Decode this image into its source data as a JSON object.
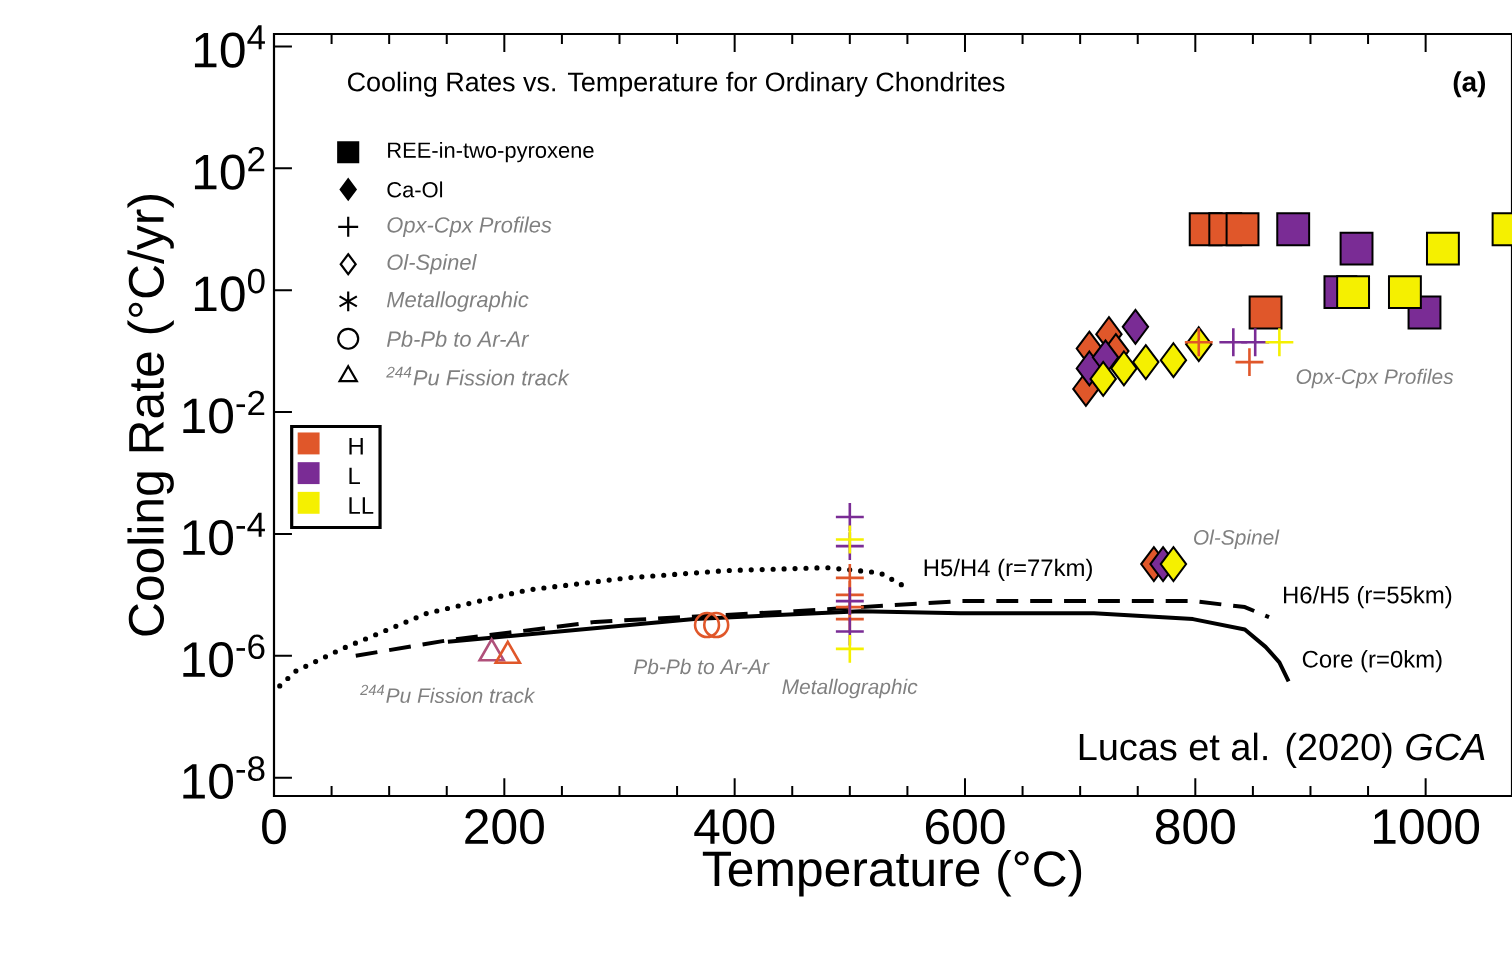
{
  "chart_data": {
    "type": "scatter",
    "title": "Cooling Rates vs. Temperature for Ordinary Chondrites",
    "xlabel": "Temperature (°C)",
    "ylabel": "Cooling Rate (°C/yr)",
    "xlim": [
      0,
      1075
    ],
    "xticks": [
      0,
      200,
      400,
      600,
      800,
      1000
    ],
    "ylim": [
      5e-09,
      16000.0
    ],
    "log": "y",
    "yticks": [
      {
        "value": 1e-08,
        "label": "10$^{-8}$"
      },
      {
        "value": 1e-06,
        "label": "10$^{-6}$"
      },
      {
        "value": 0.0001,
        "label": "10$^{-4}$"
      },
      {
        "value": 0.01,
        "label": "10$^{-2}$"
      },
      {
        "value": 1,
        "label": "10$^{0}$"
      },
      {
        "value": 100,
        "label": "10$^{2}$"
      },
      {
        "value": 10000.0,
        "label": "10$^{4}$"
      }
    ],
    "legend": "left",
    "series": [
      {
        "name": "H",
        "marker": "square",
        "color": "#e0572a",
        "x": [
          809,
          826,
          841,
          861
        ],
        "values": [
          10,
          10,
          10,
          0.43
        ]
      },
      {
        "name": "L",
        "marker": "square",
        "color": "#7a2c95",
        "x": [
          885,
          940,
          926,
          999
        ],
        "values": [
          10,
          4.8,
          0.93,
          0.43
        ]
      },
      {
        "name": "LL",
        "marker": "square",
        "color": "#f5f000",
        "x": [
          1015,
          937,
          982,
          1072
        ],
        "values": [
          4.8,
          0.93,
          0.93,
          10
        ]
      },
      {
        "marker": "diamond",
        "color": "#e0572a",
        "x": [
          705,
          708,
          725,
          731
        ],
        "values": [
          0.024,
          0.11,
          0.19,
          0.1
        ]
      },
      {
        "marker": "diamond",
        "color": "#7a2c95",
        "x": [
          708,
          722,
          748
        ],
        "values": [
          0.052,
          0.079,
          0.25
        ]
      },
      {
        "marker": "diamond",
        "color": "#f5f000",
        "x": [
          720,
          738,
          757,
          781,
          803
        ],
        "values": [
          0.035,
          0.052,
          0.066,
          0.071,
          0.13
        ]
      },
      {
        "marker": "cross",
        "color": "#e0572a",
        "x": [
          803,
          847
        ],
        "values": [
          0.14,
          0.066
        ]
      },
      {
        "marker": "cross",
        "color": "#7a2c95",
        "x": [
          833,
          852
        ],
        "values": [
          0.14,
          0.14
        ]
      },
      {
        "marker": "cross",
        "color": "#f5f000",
        "x": [
          873
        ],
        "values": [
          0.14
        ]
      },
      {
        "marker": "diamond",
        "color": "#e0572a",
        "x": [
          764
        ],
        "values": [
          3.2e-05
        ]
      },
      {
        "marker": "diamond",
        "color": "#7a2c95",
        "x": [
          772
        ],
        "values": [
          3.2e-05
        ]
      },
      {
        "marker": "diamond",
        "color": "#f5f000",
        "x": [
          781
        ],
        "values": [
          3.2e-05
        ]
      },
      {
        "marker": "cross",
        "color": "#e0572a",
        "x": [
          500,
          500,
          500,
          500
        ],
        "values": [
          1.9e-05,
          1e-05,
          6.3e-06,
          4e-06
        ]
      },
      {
        "marker": "cross",
        "color": "#7a2c95",
        "x": [
          500,
          500,
          500,
          500
        ],
        "values": [
          0.00019,
          6.3e-05,
          7.9e-06,
          2.5e-06
        ]
      },
      {
        "marker": "cross",
        "color": "#f5f000",
        "x": [
          500,
          500
        ],
        "values": [
          8.1e-05,
          1.3e-06
        ]
      },
      {
        "marker": "circle",
        "color": "#e0572a",
        "x": [
          376,
          384
        ],
        "values": [
          3.2e-06,
          3.2e-06
        ]
      },
      {
        "marker": "triangle",
        "color": "#b0507a",
        "x": [
          189
        ],
        "values": [
          1.1e-06
        ]
      },
      {
        "marker": "triangle",
        "color": "#e0572a",
        "x": [
          203
        ],
        "values": [
          1e-06
        ]
      },
      {
        "name": "H5/H4 (r=77km)",
        "type": "line",
        "color": "#000000",
        "line_style": "dotted",
        "marker": "none",
        "x": [
          5,
          19,
          59,
          133,
          220,
          307,
          393,
          480,
          526,
          544,
          552
        ],
        "values": [
          3.2e-07,
          5.6e-07,
          1.3e-06,
          5e-06,
          1.2e-05,
          1.9e-05,
          2.5e-05,
          2.8e-05,
          2.3e-05,
          1.5e-05,
          1.2e-05
        ]
      },
      {
        "name": "H6/H5 (r=55km)",
        "type": "line",
        "color": "#000000",
        "line_style": "dashed",
        "marker": "none",
        "x": [
          71,
          151,
          279,
          452,
          596,
          798,
          843,
          864
        ],
        "values": [
          1e-06,
          1.8e-06,
          3.6e-06,
          5.4e-06,
          7.9e-06,
          7.9e-06,
          6.3e-06,
          4.3e-06
        ]
      },
      {
        "name": "Core (r=0km)",
        "type": "line",
        "color": "#000000",
        "line_style": "solid",
        "marker": "none",
        "x": [
          151,
          365,
          509,
          596,
          712,
          798,
          843,
          861,
          873,
          881
        ],
        "values": [
          1.7e-06,
          4e-06,
          5.4e-06,
          5e-06,
          5e-06,
          4e-06,
          2.7e-06,
          1.4e-06,
          7.8e-07,
          3.8e-07
        ]
      }
    ],
    "annotations": [
      "(a)",
      "Lucas et al. (2020) *GCA*",
      "REE-in-two-pyroxene",
      "Ca-Ol",
      "Opx-Cpx Profiles",
      "Ol-Spinel",
      "Metallographic",
      "Pb-Pb to Ar-Ar",
      "$^{244}$Pu Fission track",
      "Opx-Cpx Profiles",
      "Ol-Spinel",
      "Metallographic",
      "Pb-Pb to Ar-Ar",
      "$^{244}$Pu Fission track"
    ]
  }
}
